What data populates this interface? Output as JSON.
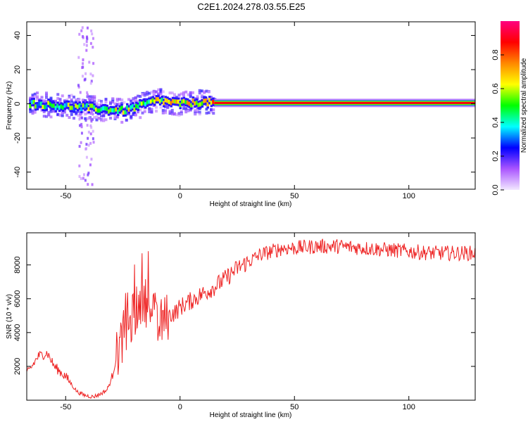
{
  "title": "C2E1.2024.278.03.55.E25",
  "chart_data": [
    {
      "type": "heatmap",
      "xlabel": "Height of straight line (km)",
      "ylabel": "Frequency (Hz)",
      "xlim": [
        -67,
        129
      ],
      "ylim": [
        -50,
        48
      ],
      "xticks": [
        -50,
        0,
        50,
        100
      ],
      "yticks": [
        -40,
        -20,
        0,
        20,
        40
      ],
      "colorbar": {
        "label": "Normalized spectral amplitude",
        "range": [
          0,
          1
        ],
        "ticks": [
          "0.0",
          "0.2",
          "0.4",
          "0.6",
          "0.8"
        ],
        "colors": [
          "#f2e8ff",
          "#aa55ff",
          "#0000ff",
          "#00ffff",
          "#00ff00",
          "#ffff00",
          "#ff8800",
          "#ff0000",
          "#ff0080"
        ]
      },
      "ridge": [
        {
          "x": -66,
          "freq": 0,
          "amp": 0.45
        },
        {
          "x": -55,
          "freq": -1,
          "amp": 0.5
        },
        {
          "x": -45,
          "freq": -2,
          "amp": 0.45
        },
        {
          "x": -35,
          "freq": -3,
          "amp": 0.5
        },
        {
          "x": -25,
          "freq": -4,
          "amp": 0.55
        },
        {
          "x": -15,
          "freq": 0,
          "amp": 0.55
        },
        {
          "x": -10,
          "freq": 2,
          "amp": 0.6
        },
        {
          "x": 0,
          "freq": 0,
          "amp": 0.65
        },
        {
          "x": 10,
          "freq": 1,
          "amp": 0.6
        },
        {
          "x": 15,
          "freq": 0.5,
          "amp": 0.85
        },
        {
          "x": 129,
          "freq": 0.5,
          "amp": 0.9
        }
      ]
    },
    {
      "type": "line",
      "xlabel": "Height of straight line (km)",
      "ylabel": "SNR (10 * v/v)",
      "xlim": [
        -67,
        129
      ],
      "ylim": [
        0,
        9900
      ],
      "xticks": [
        -50,
        0,
        50,
        100
      ],
      "yticks": [
        2000,
        4000,
        6000,
        8000
      ],
      "color": "#ee2222",
      "series": [
        {
          "x": [
            -67,
            -62,
            -58,
            -55,
            -50,
            -45,
            -42,
            -38,
            -35,
            -32,
            -30,
            -28,
            -25,
            -22,
            -20,
            -17,
            -15,
            -12,
            -10,
            -8,
            -5,
            -2,
            0,
            5,
            10,
            15,
            20,
            25,
            30,
            35,
            40,
            45,
            50,
            60,
            70,
            80,
            90,
            100,
            110,
            120,
            129
          ],
          "y": [
            1500,
            2600,
            2800,
            2000,
            1400,
            500,
            300,
            200,
            350,
            600,
            1200,
            2500,
            3800,
            4400,
            5100,
            5700,
            5800,
            5300,
            4200,
            4600,
            5000,
            5200,
            5500,
            5900,
            6300,
            6700,
            7200,
            7800,
            8200,
            8600,
            8800,
            9000,
            9000,
            9100,
            9100,
            9000,
            8900,
            8800,
            8700,
            8700,
            8700
          ]
        }
      ]
    }
  ]
}
